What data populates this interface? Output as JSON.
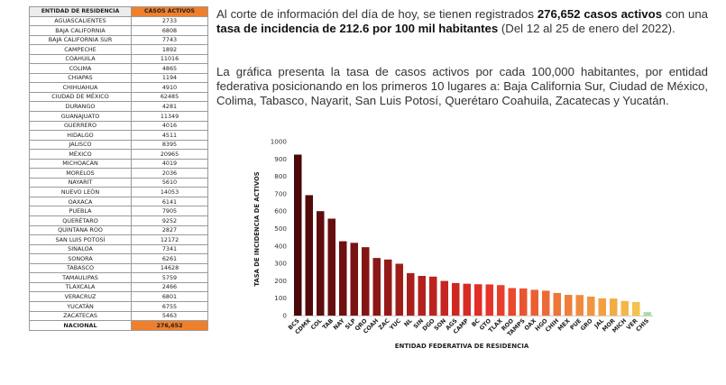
{
  "table": {
    "headers": [
      "ENTIDAD DE RESIDENCIA",
      "CASOS ACTIVOS"
    ],
    "rows": [
      [
        "AGUASCALIENTES",
        "2733"
      ],
      [
        "BAJA CALIFORNIA",
        "6808"
      ],
      [
        "BAJA CALIFORNIA SUR",
        "7743"
      ],
      [
        "CAMPECHE",
        "1892"
      ],
      [
        "COAHUILA",
        "11016"
      ],
      [
        "COLIMA",
        "4865"
      ],
      [
        "CHIAPAS",
        "1194"
      ],
      [
        "CHIHUAHUA",
        "4910"
      ],
      [
        "CIUDAD DE MÉXICO",
        "62485"
      ],
      [
        "DURANGO",
        "4281"
      ],
      [
        "GUANAJUATO",
        "11349"
      ],
      [
        "GUERRERO",
        "4016"
      ],
      [
        "HIDALGO",
        "4511"
      ],
      [
        "JALISCO",
        "8395"
      ],
      [
        "MÉXICO",
        "20965"
      ],
      [
        "MICHOACÁN",
        "4019"
      ],
      [
        "MORELOS",
        "2036"
      ],
      [
        "NAYARIT",
        "5610"
      ],
      [
        "NUEVO LEÓN",
        "14053"
      ],
      [
        "OAXACA",
        "6141"
      ],
      [
        "PUEBLA",
        "7905"
      ],
      [
        "QUERÉTARO",
        "9252"
      ],
      [
        "QUINTANA ROO",
        "2827"
      ],
      [
        "SAN LUIS POTOSÍ",
        "12172"
      ],
      [
        "SINALOA",
        "7341"
      ],
      [
        "SONORA",
        "6261"
      ],
      [
        "TABASCO",
        "14628"
      ],
      [
        "TAMAULIPAS",
        "5759"
      ],
      [
        "TLAXCALA",
        "2466"
      ],
      [
        "VERACRUZ",
        "6801"
      ],
      [
        "YUCATÁN",
        "6755"
      ],
      [
        "ZACATECAS",
        "5463"
      ]
    ],
    "total": [
      "NACIONAL",
      "276,652"
    ]
  },
  "text": {
    "p1_a": "Al corte de información del día de hoy, se tienen registrados ",
    "p1_b": "276,652 casos activos",
    "p1_c": " con una ",
    "p1_d": "tasa de incidencia de 212.6 por 100 mil habitantes",
    "p1_e": " (Del 12 al 25 de enero del 2022).",
    "p2": "La gráfica presenta la tasa de casos activos por cada 100,000 habitantes, por entidad federativa posicionando en los primeros 10 lugares a: Baja California Sur, Ciudad de México, Colima, Tabasco, Nayarit, San Luis Potosí, Querétaro Coahuila, Zacatecas y Yucatán."
  },
  "colors": {
    "header_accent": "#f07f2c",
    "gradient_start": "#4a0808",
    "gradient_mid": "#e62e28",
    "gradient_late": "#f5c24a",
    "last_bar": "#a8dca6"
  },
  "chart_data": {
    "type": "bar",
    "xlabel": "ENTIDAD FEDERATIVA DE RESIDENCIA",
    "ylabel": "TASA DE INCIDENCIA DE ACTIVOS",
    "ylim": [
      0,
      1000
    ],
    "yticks": [
      0,
      100,
      200,
      300,
      400,
      500,
      600,
      700,
      800,
      900,
      1000
    ],
    "grid": false,
    "categories": [
      "BCS",
      "CDMX",
      "COL",
      "TAB",
      "NAY",
      "SLP",
      "QRO",
      "COAH",
      "ZAC",
      "YUC",
      "NL",
      "SIN",
      "DGO",
      "SON",
      "AGS",
      "CAMP",
      "BC",
      "GTO",
      "TLAX",
      "ROO",
      "TAMPS",
      "OAX",
      "HGO",
      "CHIH",
      "MEX",
      "PUE",
      "GRO",
      "JAL",
      "MOR",
      "MICH",
      "VER",
      "CHIS"
    ],
    "values": [
      925,
      692,
      600,
      557,
      427,
      418,
      393,
      331,
      322,
      298,
      244,
      228,
      224,
      199,
      187,
      183,
      180,
      179,
      175,
      158,
      156,
      148,
      143,
      130,
      119,
      118,
      109,
      99,
      98,
      84,
      78,
      20
    ]
  }
}
